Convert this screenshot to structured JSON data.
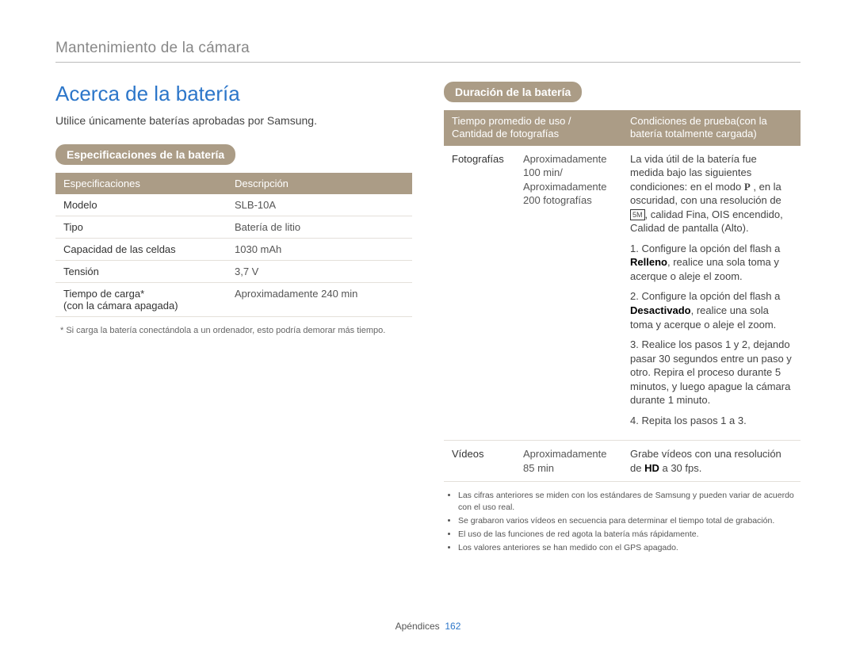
{
  "chapter": "Mantenimiento de la cámara",
  "section_title": "Acerca de la batería",
  "intro": "Utilice únicamente baterías aprobadas por Samsung.",
  "spec_heading": "Especificaciones de la batería",
  "spec_table": {
    "headers": [
      "Especificaciones",
      "Descripción"
    ],
    "rows": [
      {
        "label": "Modelo",
        "value": "SLB-10A"
      },
      {
        "label": "Tipo",
        "value": "Batería de litio"
      },
      {
        "label": "Capacidad de las celdas",
        "value": "1030 mAh"
      },
      {
        "label": "Tensión",
        "value": "3,7 V"
      },
      {
        "label": "Tiempo de carga*\n(con la cámara apagada)",
        "value": "Aproximadamente 240 min"
      }
    ]
  },
  "spec_footnote": "* Si carga la batería conectándola a un ordenador, esto podría demorar más tiempo.",
  "life_heading": "Duración de la batería",
  "life_table": {
    "headers": [
      "Tiempo promedio de uso / Cantidad de fotografías",
      "Condiciones de prueba(con la batería totalmente cargada)"
    ],
    "rows": [
      {
        "category": "Fotografías",
        "time": "Aproximadamente 100 min/ Aproximadamente 200 fotografías",
        "cond_intro_pre": "La vida útil de la batería fue medida bajo las siguientes condiciones: en el modo ",
        "cond_intro_mid": " , en la oscuridad, con una resolución de ",
        "cond_intro_post": ", calidad Fina, OIS encendido, Calidad de pantalla (Alto).",
        "icon_p": "P",
        "icon_res": "■",
        "step1_pre": "1. Configure la opción del flash a ",
        "step1_bold": "Relleno",
        "step1_post": ", realice una sola toma y acerque o aleje el zoom.",
        "step2_pre": "2. Configure la opción del flash a ",
        "step2_bold": "Desactivado",
        "step2_post": ", realice una sola toma y acerque o aleje el zoom.",
        "step3": "3. Realice los pasos 1 y 2, dejando pasar 30 segundos entre un paso y otro. Repira el proceso durante 5 minutos, y luego apague la cámara durante 1 minuto.",
        "step4": "4. Repita los pasos 1 a 3."
      },
      {
        "category": "Vídeos",
        "time": "Aproximadamente 85 min",
        "cond_pre": "Grabe vídeos con una resolución de ",
        "cond_bold": "HD",
        "cond_post": " a 30 fps."
      }
    ]
  },
  "life_notes": [
    "Las cifras anteriores se miden con los estándares de Samsung y pueden variar de acuerdo con el uso real.",
    "Se grabaron varios vídeos en secuencia para determinar el tiempo total de grabación.",
    "El uso de las funciones de red agota la batería más rápidamente.",
    "Los valores anteriores se han medido con el GPS apagado."
  ],
  "footer_label": "Apéndices",
  "footer_page": "162",
  "colors": {
    "accent": "#2c76c9",
    "pill_bg": "#ab9c86"
  }
}
